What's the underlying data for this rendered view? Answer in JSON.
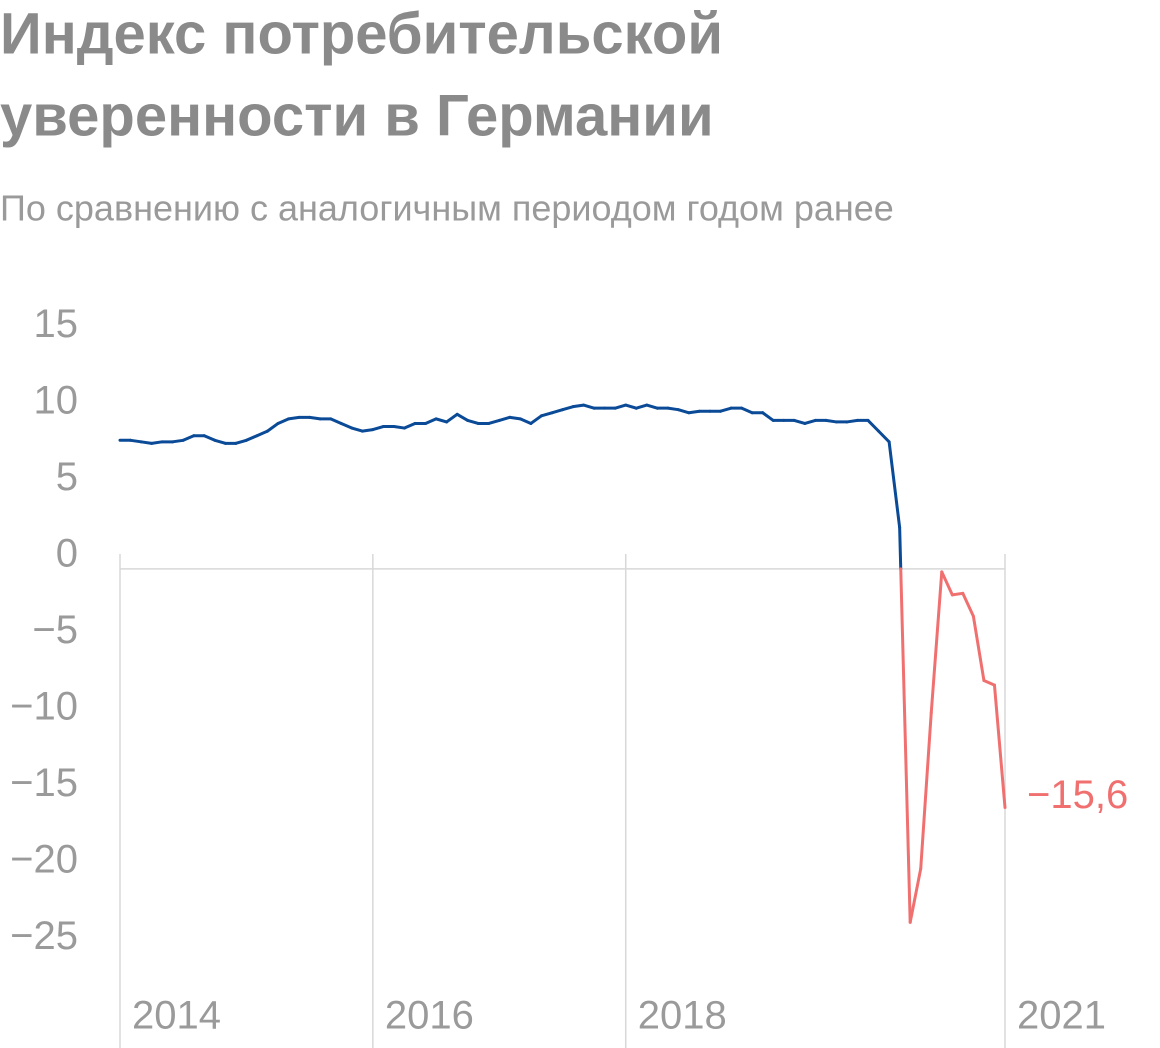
{
  "chart_data": {
    "type": "line",
    "title": [
      "Индекс потребительской",
      "уверенности в Германии"
    ],
    "subtitle": "По сравнению с аналогичным периодом годом ранее",
    "x": [
      "2014-01",
      "2014-02",
      "2014-03",
      "2014-04",
      "2014-05",
      "2014-06",
      "2014-07",
      "2014-08",
      "2014-09",
      "2014-10",
      "2014-11",
      "2014-12",
      "2015-01",
      "2015-02",
      "2015-03",
      "2015-04",
      "2015-05",
      "2015-06",
      "2015-07",
      "2015-08",
      "2015-09",
      "2015-10",
      "2015-11",
      "2015-12",
      "2016-01",
      "2016-02",
      "2016-03",
      "2016-04",
      "2016-05",
      "2016-06",
      "2016-07",
      "2016-08",
      "2016-09",
      "2016-10",
      "2016-11",
      "2016-12",
      "2017-01",
      "2017-02",
      "2017-03",
      "2017-04",
      "2017-05",
      "2017-06",
      "2017-07",
      "2017-08",
      "2017-09",
      "2017-10",
      "2017-11",
      "2017-12",
      "2018-01",
      "2018-02",
      "2018-03",
      "2018-04",
      "2018-05",
      "2018-06",
      "2018-07",
      "2018-08",
      "2018-09",
      "2018-10",
      "2018-11",
      "2018-12",
      "2019-01",
      "2019-02",
      "2019-03",
      "2019-04",
      "2019-05",
      "2019-06",
      "2019-07",
      "2019-08",
      "2019-09",
      "2019-10",
      "2019-11",
      "2019-12",
      "2020-01",
      "2020-02",
      "2020-03",
      "2020-04",
      "2020-05",
      "2020-06",
      "2020-07",
      "2020-08",
      "2020-09",
      "2020-10",
      "2020-11",
      "2020-12",
      "2021-01"
    ],
    "values": [
      8.4,
      8.4,
      8.3,
      8.2,
      8.3,
      8.3,
      8.4,
      8.7,
      8.7,
      8.4,
      8.2,
      8.2,
      8.4,
      8.7,
      9.0,
      9.5,
      9.8,
      9.9,
      9.9,
      9.8,
      9.8,
      9.5,
      9.2,
      9.0,
      9.1,
      9.3,
      9.3,
      9.2,
      9.5,
      9.5,
      9.8,
      9.6,
      10.1,
      9.7,
      9.5,
      9.5,
      9.7,
      9.9,
      9.8,
      9.5,
      10.0,
      10.2,
      10.4,
      10.6,
      10.7,
      10.5,
      10.5,
      10.5,
      10.7,
      10.5,
      10.7,
      10.5,
      10.5,
      10.4,
      10.2,
      10.3,
      10.3,
      10.3,
      10.5,
      10.5,
      10.2,
      10.2,
      9.7,
      9.7,
      9.7,
      9.5,
      9.7,
      9.7,
      9.6,
      9.6,
      9.7,
      9.7,
      9.0,
      8.3,
      2.7,
      -23.1,
      -19.6,
      -9.4,
      -0.2,
      -1.7,
      -1.6,
      -3.1,
      -7.3,
      -7.6,
      -15.6
    ],
    "value_labels": [
      null,
      null,
      null,
      null,
      null,
      null,
      null,
      null,
      null,
      null,
      null,
      null,
      null,
      null,
      null,
      null,
      null,
      null,
      null,
      null,
      null,
      null,
      null,
      null,
      null,
      null,
      null,
      null,
      null,
      null,
      null,
      null,
      null,
      null,
      null,
      null,
      null,
      null,
      null,
      null,
      null,
      null,
      null,
      null,
      null,
      null,
      null,
      null,
      null,
      null,
      null,
      null,
      null,
      null,
      null,
      null,
      null,
      null,
      null,
      null,
      null,
      null,
      null,
      null,
      null,
      null,
      null,
      null,
      null,
      null,
      null,
      null,
      null,
      null,
      null,
      null,
      null,
      null,
      null,
      null,
      null,
      null,
      null,
      null,
      "−15,6"
    ],
    "positive_color": "#0a4a96",
    "negative_color": "#f07070",
    "xlim": [
      "2014-01",
      "2021-01"
    ],
    "xticks": [
      {
        "value": "2014-01",
        "label": "2014"
      },
      {
        "value": "2016-01",
        "label": "2016"
      },
      {
        "value": "2018-01",
        "label": "2018"
      },
      {
        "value": "2021-01",
        "label": "2021"
      }
    ],
    "ylim": [
      -27,
      16
    ],
    "yticks": [
      15,
      10,
      5,
      0,
      {
        "value": -5,
        "label": "−5"
      },
      {
        "value": -10,
        "label": "−10"
      },
      {
        "value": -15,
        "label": "−15"
      },
      {
        "value": -20,
        "label": "−20"
      },
      {
        "value": -25,
        "label": "−25"
      }
    ]
  }
}
